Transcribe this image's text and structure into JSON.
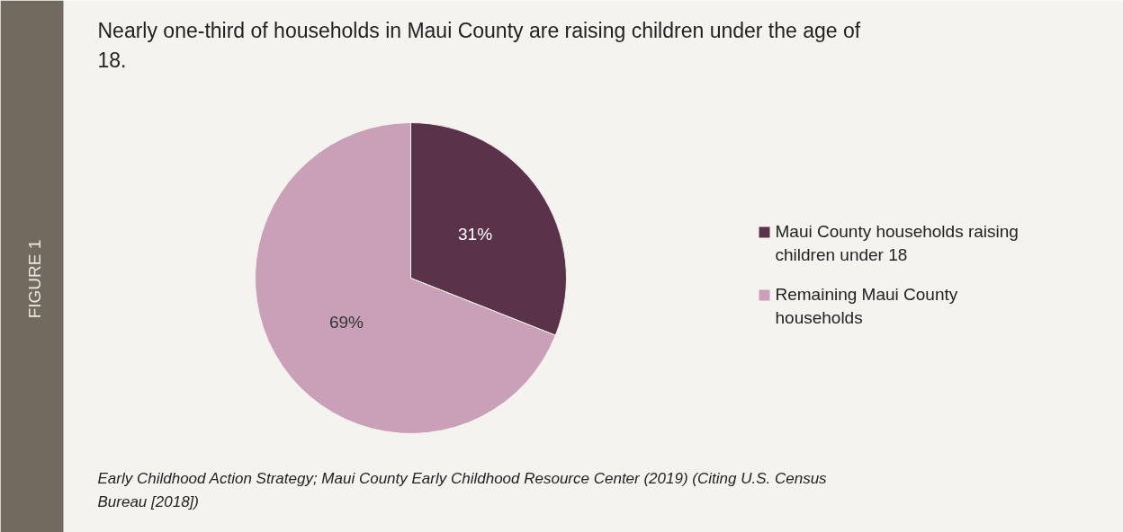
{
  "chart_data": {
    "type": "pie",
    "title": "Nearly one-third of households in Maui County are raising children under the age of 18.",
    "categories": [
      "Maui County households raising children under 18",
      "Remaining Maui County households"
    ],
    "values": [
      31,
      69
    ],
    "colors": [
      "#5a3249",
      "#c9a0b8"
    ],
    "value_labels": [
      "31%",
      "69%"
    ],
    "legend": "right",
    "annotations": [
      "FIGURE 1",
      "Early Childhood Action Strategy; Maui County Early Childhood Resource Center (2019) (Citing U.S. Census Bureau [2018])"
    ]
  }
}
